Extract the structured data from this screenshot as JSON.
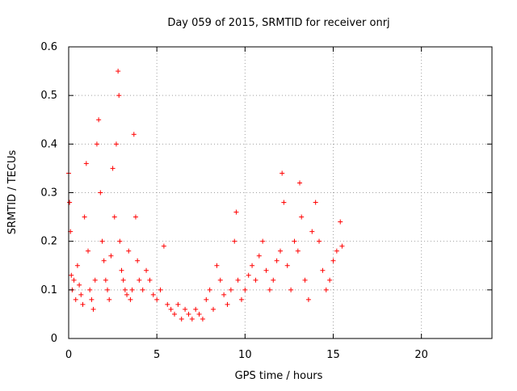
{
  "chart_data": {
    "type": "scatter",
    "title": "Day 059 of 2015, SRMTID for receiver onrj",
    "xlabel": "GPS time / hours",
    "ylabel": "SRMTID / TECUs",
    "xlim": [
      0,
      24
    ],
    "ylim": [
      0,
      0.6
    ],
    "xticks": [
      0,
      5,
      10,
      15,
      20
    ],
    "yticks": [
      0,
      0.1,
      0.2,
      0.3,
      0.4,
      0.5,
      0.6
    ],
    "grid": true,
    "marker": "+",
    "color": "#ff0000",
    "series": [
      {
        "name": "SRMTID",
        "x": [
          0.0,
          0.05,
          0.1,
          0.15,
          0.2,
          0.3,
          0.4,
          0.5,
          0.6,
          0.7,
          0.8,
          0.9,
          1.0,
          1.1,
          1.2,
          1.3,
          1.4,
          1.5,
          1.6,
          1.7,
          1.8,
          1.9,
          2.0,
          2.1,
          2.2,
          2.3,
          2.4,
          2.5,
          2.6,
          2.7,
          2.8,
          2.85,
          2.9,
          3.0,
          3.1,
          3.2,
          3.3,
          3.4,
          3.5,
          3.6,
          3.7,
          3.8,
          3.9,
          4.0,
          4.2,
          4.4,
          4.6,
          4.8,
          5.0,
          5.2,
          5.4,
          5.6,
          5.8,
          6.0,
          6.2,
          6.4,
          6.6,
          6.8,
          7.0,
          7.2,
          7.4,
          7.6,
          7.8,
          8.0,
          8.2,
          8.4,
          8.6,
          8.8,
          9.0,
          9.2,
          9.4,
          9.5,
          9.6,
          9.8,
          10.0,
          10.2,
          10.4,
          10.6,
          10.8,
          11.0,
          11.2,
          11.4,
          11.6,
          11.8,
          12.0,
          12.1,
          12.2,
          12.4,
          12.6,
          12.8,
          13.0,
          13.1,
          13.2,
          13.4,
          13.6,
          13.8,
          14.0,
          14.2,
          14.4,
          14.6,
          14.8,
          15.0,
          15.2,
          15.4,
          15.5
        ],
        "y": [
          0.34,
          0.28,
          0.22,
          0.13,
          0.1,
          0.12,
          0.08,
          0.15,
          0.11,
          0.09,
          0.07,
          0.25,
          0.36,
          0.18,
          0.1,
          0.08,
          0.06,
          0.12,
          0.4,
          0.45,
          0.3,
          0.2,
          0.16,
          0.12,
          0.1,
          0.08,
          0.17,
          0.35,
          0.25,
          0.4,
          0.55,
          0.5,
          0.2,
          0.14,
          0.12,
          0.1,
          0.09,
          0.18,
          0.08,
          0.1,
          0.42,
          0.25,
          0.16,
          0.12,
          0.1,
          0.14,
          0.12,
          0.09,
          0.08,
          0.1,
          0.19,
          0.07,
          0.06,
          0.05,
          0.07,
          0.04,
          0.06,
          0.05,
          0.04,
          0.06,
          0.05,
          0.04,
          0.08,
          0.1,
          0.06,
          0.15,
          0.12,
          0.09,
          0.07,
          0.1,
          0.2,
          0.26,
          0.12,
          0.08,
          0.1,
          0.13,
          0.15,
          0.12,
          0.17,
          0.2,
          0.14,
          0.1,
          0.12,
          0.16,
          0.18,
          0.34,
          0.28,
          0.15,
          0.1,
          0.2,
          0.18,
          0.32,
          0.25,
          0.12,
          0.08,
          0.22,
          0.28,
          0.2,
          0.14,
          0.1,
          0.12,
          0.16,
          0.18,
          0.24,
          0.19
        ]
      }
    ]
  }
}
